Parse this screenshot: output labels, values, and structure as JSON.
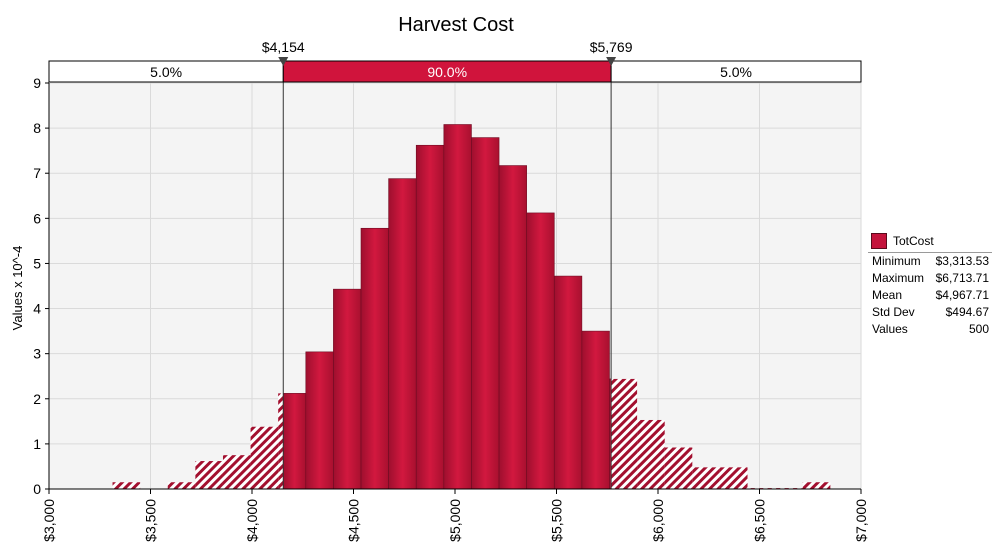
{
  "chart_data": {
    "type": "bar",
    "title": "Harvest Cost",
    "ylabel": "Values x 10^-4",
    "xlabel": "",
    "xlim": [
      3000,
      7000
    ],
    "ylim": [
      0,
      9
    ],
    "x_ticks": [
      3000,
      3500,
      4000,
      4500,
      5000,
      5500,
      6000,
      6500,
      7000
    ],
    "x_tick_labels": [
      "$3,000",
      "$3,500",
      "$4,000",
      "$4,500",
      "$5,000",
      "$5,500",
      "$6,000",
      "$6,500",
      "$7,000"
    ],
    "y_ticks": [
      0,
      1,
      2,
      3,
      4,
      5,
      6,
      7,
      8,
      9
    ],
    "y_tick_labels": [
      "0",
      "1",
      "2",
      "3",
      "4",
      "5",
      "6",
      "7",
      "8",
      "9"
    ],
    "grid": true,
    "bin_width": 136,
    "bins": [
      {
        "x0": 3313,
        "value": 0.15
      },
      {
        "x0": 3449,
        "value": 0.0
      },
      {
        "x0": 3585,
        "value": 0.15
      },
      {
        "x0": 3721,
        "value": 0.62
      },
      {
        "x0": 3857,
        "value": 0.75
      },
      {
        "x0": 3993,
        "value": 1.38
      },
      {
        "x0": 4129,
        "value": 2.12
      },
      {
        "x0": 4265,
        "value": 3.04
      },
      {
        "x0": 4401,
        "value": 4.43
      },
      {
        "x0": 4537,
        "value": 5.78
      },
      {
        "x0": 4673,
        "value": 6.88
      },
      {
        "x0": 4809,
        "value": 7.62
      },
      {
        "x0": 4945,
        "value": 8.08
      },
      {
        "x0": 5081,
        "value": 7.79
      },
      {
        "x0": 5217,
        "value": 7.17
      },
      {
        "x0": 5353,
        "value": 6.12
      },
      {
        "x0": 5489,
        "value": 4.72
      },
      {
        "x0": 5625,
        "value": 3.5
      },
      {
        "x0": 5761,
        "value": 2.44
      },
      {
        "x0": 5897,
        "value": 1.53
      },
      {
        "x0": 6033,
        "value": 0.92
      },
      {
        "x0": 6169,
        "value": 0.48
      },
      {
        "x0": 6305,
        "value": 0.48
      },
      {
        "x0": 6441,
        "value": 0.02
      },
      {
        "x0": 6577,
        "value": 0.02
      },
      {
        "x0": 6713,
        "value": 0.15
      }
    ],
    "delimiters": [
      {
        "value": 4154,
        "label": "$4,154"
      },
      {
        "value": 5769,
        "label": "$5,769"
      }
    ],
    "regions": [
      {
        "label": "5.0%",
        "highlight": false
      },
      {
        "label": "90.0%",
        "highlight": true
      },
      {
        "label": "5.0%",
        "highlight": false
      }
    ],
    "colors": {
      "bar": "#c4143c",
      "bar_edge": "#6e0b22",
      "hatch": "#a3102f",
      "band_highlight": "#d0143c",
      "plot_bg": "#f4f4f4",
      "grid": "#dadada"
    },
    "legend": {
      "series_name": "TotCost",
      "placement": "right",
      "stats": [
        {
          "label": "Minimum",
          "value": "$3,313.53"
        },
        {
          "label": "Maximum",
          "value": "$6,713.71"
        },
        {
          "label": "Mean",
          "value": "$4,967.71"
        },
        {
          "label": "Std Dev",
          "value": "$494.67"
        },
        {
          "label": "Values",
          "value": "500"
        }
      ]
    }
  }
}
